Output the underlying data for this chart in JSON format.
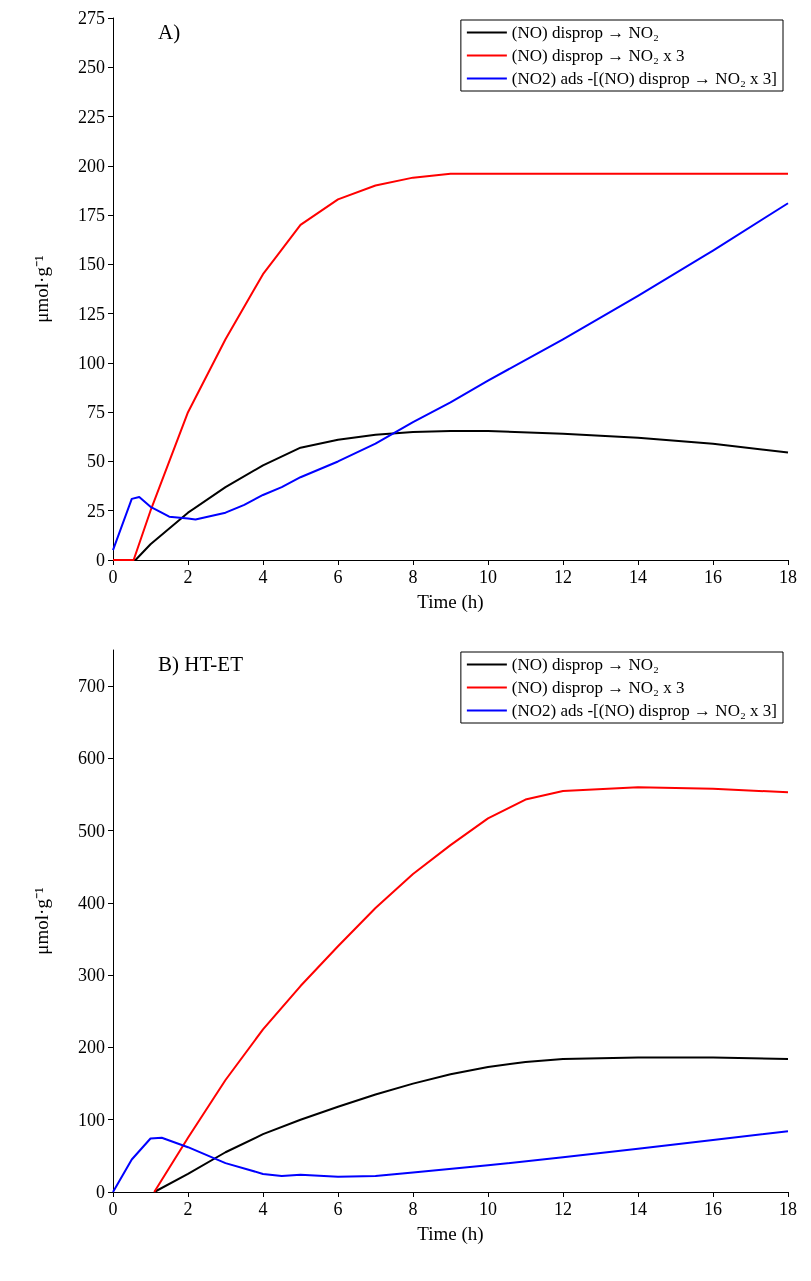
{
  "chart_data": [
    {
      "type": "line",
      "title": "A)",
      "xlabel": "Time (h)",
      "ylabel": "μmol·g⁻¹",
      "xlim": [
        0,
        18
      ],
      "xticks": [
        0,
        2,
        4,
        6,
        8,
        10,
        12,
        14,
        16,
        18
      ],
      "ylim": [
        0,
        275
      ],
      "yticks": [
        0,
        25,
        50,
        75,
        100,
        125,
        150,
        175,
        200,
        225,
        250,
        275
      ],
      "grid": false,
      "legend": "top right",
      "marker": "none",
      "line_style": "solid",
      "series": [
        {
          "name": "(NO) disprop → NO₂",
          "color": "#000000",
          "x": [
            0,
            0.6,
            1,
            2,
            3,
            4,
            5,
            6,
            7,
            8,
            9,
            10,
            12,
            14,
            16,
            18
          ],
          "values": [
            0,
            0,
            8,
            24,
            37,
            48,
            57,
            61,
            63.5,
            65,
            65.5,
            65.5,
            64,
            62,
            59,
            54.5
          ]
        },
        {
          "name": "(NO) disprop → NO₂ x 3",
          "color": "#ff0000",
          "x": [
            0,
            0.55,
            1,
            2,
            3,
            4,
            5,
            6,
            7,
            8,
            9,
            10,
            12,
            14,
            16,
            18
          ],
          "values": [
            0,
            0,
            25,
            75,
            112,
            145,
            170,
            183,
            190,
            194,
            196,
            196,
            196,
            196,
            196,
            196
          ]
        },
        {
          "name": "(NO2) ads -[(NO) disprop → NO₂ x 3]",
          "color": "#0000ff",
          "x": [
            0,
            0.5,
            0.7,
            1,
            1.5,
            2,
            2.2,
            3,
            3.5,
            4,
            4.5,
            5,
            6,
            7,
            8,
            9,
            10,
            12,
            14,
            16,
            18
          ],
          "values": [
            5,
            31,
            32,
            27,
            22,
            21,
            20.5,
            24,
            28,
            33,
            37,
            42,
            50,
            59,
            70,
            80,
            91,
            112,
            134,
            157,
            181
          ]
        }
      ]
    },
    {
      "type": "line",
      "title": "B) HT-ET",
      "xlabel": "Time (h)",
      "ylabel": "μmol·g⁻¹",
      "xlim": [
        0,
        18
      ],
      "xticks": [
        0,
        2,
        4,
        6,
        8,
        10,
        12,
        14,
        16,
        18
      ],
      "ylim": [
        0,
        750
      ],
      "yticks": [
        0,
        100,
        200,
        300,
        400,
        500,
        600,
        700
      ],
      "grid": false,
      "legend": "top right",
      "marker": "none",
      "line_style": "solid",
      "series": [
        {
          "name": "(NO) disprop → NO₂",
          "color": "#000000",
          "x": [
            1.1,
            2,
            3,
            4,
            5,
            6,
            7,
            8,
            9,
            10,
            11,
            12,
            14,
            16,
            18
          ],
          "values": [
            0,
            25,
            55,
            80,
            100,
            118,
            135,
            150,
            163,
            173,
            180,
            184,
            186,
            186,
            184
          ]
        },
        {
          "name": "(NO) disprop → NO₂ x 3",
          "color": "#ff0000",
          "x": [
            1.1,
            2,
            3,
            4,
            5,
            6,
            7,
            8,
            9,
            10,
            11,
            12,
            14,
            16,
            18
          ],
          "values": [
            0,
            75,
            155,
            225,
            285,
            340,
            393,
            440,
            480,
            517,
            543,
            555,
            560,
            558,
            553
          ]
        },
        {
          "name": "(NO2) ads -[(NO) disprop → NO₂ x 3]",
          "color": "#0000ff",
          "x": [
            0,
            0.5,
            1,
            1.3,
            2,
            3,
            4,
            4.5,
            5,
            6,
            7,
            8,
            10,
            12,
            14,
            16,
            18
          ],
          "values": [
            0,
            45,
            74,
            75,
            62,
            40,
            25,
            22,
            24,
            21,
            22,
            27,
            37,
            48,
            60,
            72,
            84
          ]
        }
      ]
    }
  ]
}
